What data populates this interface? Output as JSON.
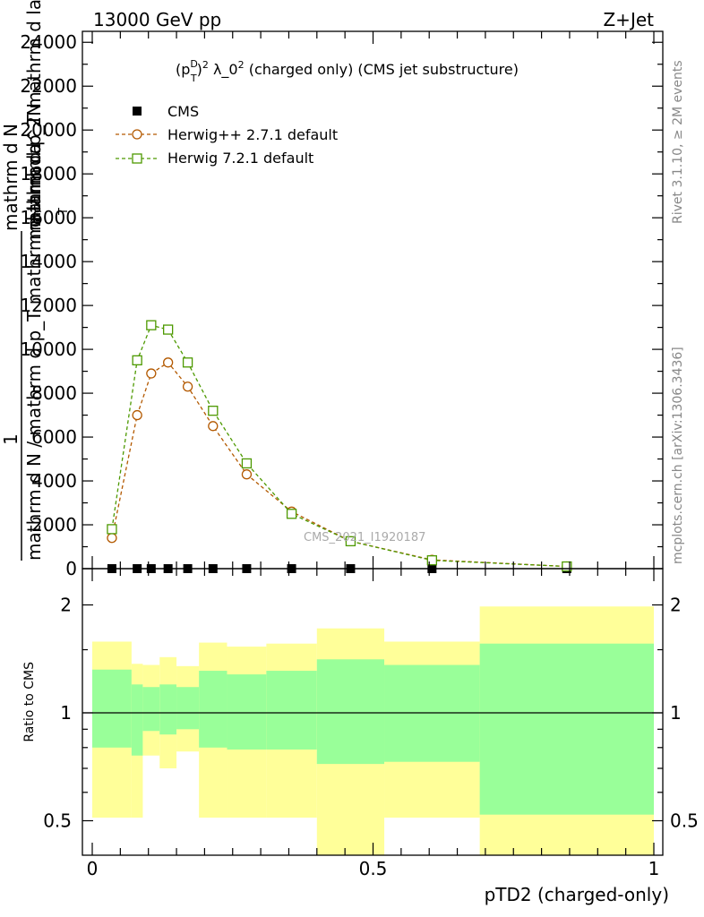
{
  "header": {
    "left": "13000 GeV pp",
    "right": "Z+Jet"
  },
  "side_text": {
    "rivet": "Rivet 3.1.10, ≥ 2M events",
    "mcplots": "mcplots.cern.ch [arXiv:1306.3436]"
  },
  "watermark": "CMS_2021_I1920187",
  "colors": {
    "herwigpp": "#b35900",
    "herwig7": "#4d9900",
    "band_yellow": "#ffff99",
    "band_green": "#99ff99"
  },
  "chart_data": [
    {
      "type": "line",
      "title": "(p_T^D)^2 λ_0^2 (charged only) (CMS jet substructure)",
      "title_parts": {
        "a": "(p",
        "b": "D",
        "c": "T",
        "d": ")",
        "e": "2",
        "f": " λ_0",
        "g": "2",
        "h": " (charged only) (CMS jet substructure)"
      },
      "ylabel_parts": {
        "one": "1",
        "num": "mathrm d N",
        "den": "mathrm d N / mathrm d p_T mathrm d lambda",
        "garble1": "mathrm d^2N",
        "garble2": "mathrm d p_T mathrm d lambda",
        "garble3": "T"
      },
      "xlabel": "pTD2 (charged-only)",
      "xlim": [
        0,
        1
      ],
      "ylim": [
        0,
        24500
      ],
      "y_ticks": [
        "0",
        "2000",
        "4000",
        "6000",
        "8000",
        "10000",
        "12000",
        "14000",
        "16000",
        "18000",
        "20000",
        "22000",
        "24000"
      ],
      "legend_position": "top-left",
      "series": [
        {
          "name": "CMS",
          "marker": "square-filled",
          "x": [
            0.035,
            0.08,
            0.105,
            0.135,
            0.17,
            0.215,
            0.275,
            0.355,
            0.46,
            0.605,
            0.845
          ],
          "y": [
            0,
            0,
            0,
            0,
            0,
            0,
            0,
            0,
            0,
            0,
            0
          ]
        },
        {
          "name": "Herwig++ 2.7.1 default",
          "marker": "circle-open",
          "x": [
            0.035,
            0.08,
            0.105,
            0.135,
            0.17,
            0.215,
            0.275,
            0.355,
            0.46,
            0.605,
            0.845
          ],
          "y": [
            1400,
            7000,
            8900,
            9400,
            8300,
            6500,
            4300,
            2600,
            1250,
            400,
            100
          ]
        },
        {
          "name": "Herwig 7.2.1 default",
          "marker": "square-open",
          "x": [
            0.035,
            0.08,
            0.105,
            0.135,
            0.17,
            0.215,
            0.275,
            0.355,
            0.46,
            0.605,
            0.845
          ],
          "y": [
            1800,
            9500,
            11100,
            10900,
            9400,
            7200,
            4800,
            2500,
            1250,
            380,
            100
          ]
        }
      ]
    },
    {
      "type": "area",
      "ylabel": "Ratio to CMS",
      "xlabel": "pTD2 (charged-only)",
      "xlim": [
        0,
        1
      ],
      "ylim": [
        0.35,
        2.25
      ],
      "x_ticks": [
        "0",
        "0.5",
        "1"
      ],
      "y_ticks": [
        "0.5",
        "1",
        "2"
      ],
      "reference_line": 1,
      "bins": [
        {
          "lo": 0.0,
          "hi": 0.07,
          "green": [
            0.8,
            1.32
          ],
          "yellow": [
            0.51,
            1.58
          ]
        },
        {
          "lo": 0.07,
          "hi": 0.09,
          "green": [
            0.76,
            1.2
          ],
          "yellow": [
            0.51,
            1.37
          ]
        },
        {
          "lo": 0.09,
          "hi": 0.12,
          "green": [
            0.89,
            1.18
          ],
          "yellow": [
            0.76,
            1.36
          ]
        },
        {
          "lo": 0.12,
          "hi": 0.15,
          "green": [
            0.87,
            1.2
          ],
          "yellow": [
            0.7,
            1.43
          ]
        },
        {
          "lo": 0.15,
          "hi": 0.19,
          "green": [
            0.9,
            1.18
          ],
          "yellow": [
            0.78,
            1.35
          ]
        },
        {
          "lo": 0.19,
          "hi": 0.24,
          "green": [
            0.8,
            1.31
          ],
          "yellow": [
            0.51,
            1.57
          ]
        },
        {
          "lo": 0.24,
          "hi": 0.31,
          "green": [
            0.79,
            1.28
          ],
          "yellow": [
            0.51,
            1.53
          ]
        },
        {
          "lo": 0.31,
          "hi": 0.4,
          "green": [
            0.79,
            1.31
          ],
          "yellow": [
            0.51,
            1.56
          ]
        },
        {
          "lo": 0.4,
          "hi": 0.52,
          "green": [
            0.72,
            1.41
          ],
          "yellow": [
            0.35,
            1.72
          ]
        },
        {
          "lo": 0.52,
          "hi": 0.69,
          "green": [
            0.73,
            1.36
          ],
          "yellow": [
            0.51,
            1.58
          ]
        },
        {
          "lo": 0.69,
          "hi": 1.0,
          "green": [
            0.52,
            1.56
          ],
          "yellow": [
            0.35,
            1.98
          ]
        }
      ]
    }
  ]
}
